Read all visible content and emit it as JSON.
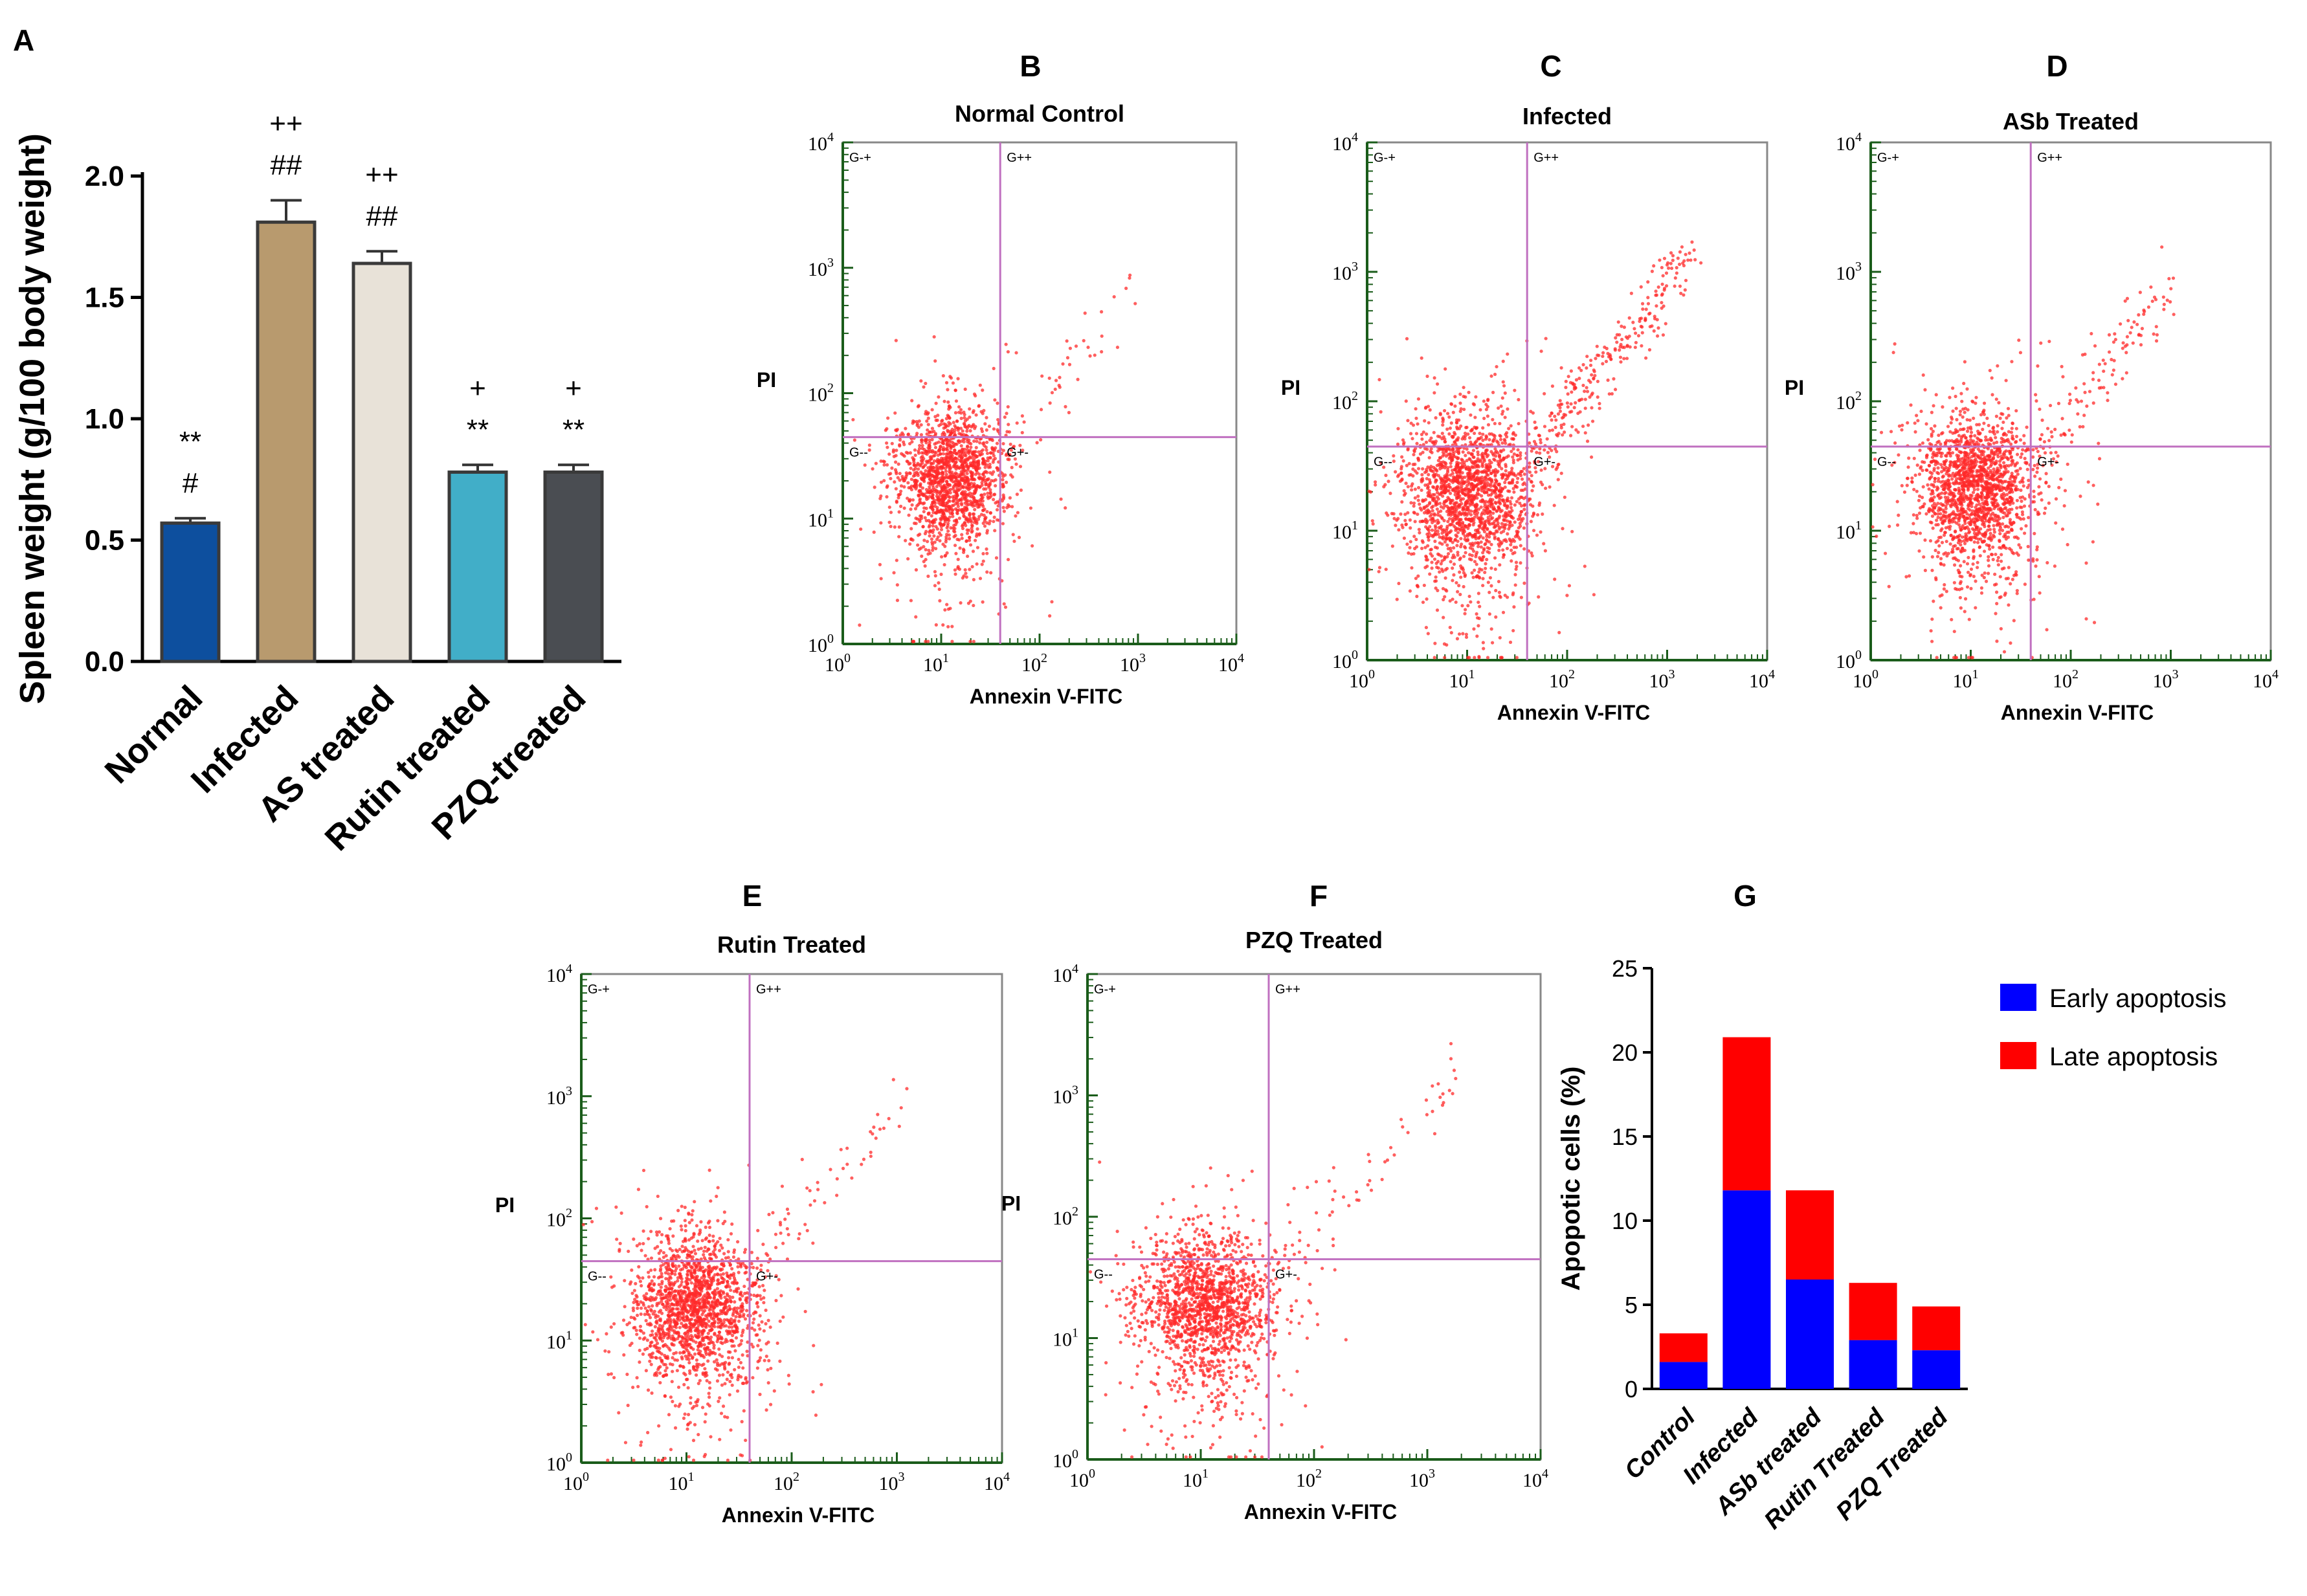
{
  "chart_data": [
    {
      "panel": "A",
      "type": "bar",
      "title": "",
      "xlabel": "",
      "ylabel": "Spleen weight (g/100 body weight)",
      "ylim": [
        0,
        2.0
      ],
      "yticks": [
        "0.0",
        "0.5",
        "1.0",
        "1.5",
        "2.0"
      ],
      "categories": [
        "Normal",
        "Infected",
        "AS treated",
        "Rutin treated",
        "PZQ-treated"
      ],
      "values": [
        0.57,
        1.81,
        1.64,
        0.78,
        0.78
      ],
      "errors": [
        0.02,
        0.09,
        0.05,
        0.03,
        0.03
      ],
      "colors": [
        "#0d4f9e",
        "#b89a6e",
        "#e8e2d8",
        "#41aec8",
        "#4a4d52"
      ],
      "annotations": [
        [
          "**",
          "#"
        ],
        [
          "++",
          "##"
        ],
        [
          "++",
          "##"
        ],
        [
          "+",
          "**"
        ],
        [
          "+",
          "**"
        ]
      ]
    },
    {
      "panel": "B",
      "type": "scatter",
      "title": "Normal Control",
      "xlabel": "Annexin V-FITC",
      "ylabel": "PI",
      "ticks": [
        "0",
        "1",
        "2",
        "3",
        "4"
      ],
      "quadrants": [
        "G-+",
        "G++",
        "G--",
        "G+-"
      ],
      "gate": [
        1.6,
        1.65
      ],
      "cluster": {
        "x": 1.1,
        "y": 1.35,
        "spread": 0.28,
        "n": 1600
      },
      "diagonal": {
        "n": 40,
        "from": 1.7,
        "to": 3.0
      },
      "outliers": 60
    },
    {
      "panel": "C",
      "type": "scatter",
      "title": "Infected",
      "xlabel": "Annexin V-FITC",
      "ylabel": "PI",
      "ticks": [
        "0",
        "1",
        "2",
        "3",
        "4"
      ],
      "quadrants": [
        "G-+",
        "G++",
        "G--",
        "G+-"
      ],
      "gate": [
        1.6,
        1.65
      ],
      "cluster": {
        "x": 1.0,
        "y": 1.3,
        "spread": 0.32,
        "n": 1800
      },
      "diagonal": {
        "n": 260,
        "from": 1.6,
        "to": 3.2
      },
      "outliers": 60
    },
    {
      "panel": "D",
      "type": "scatter",
      "title": "ASb Treated",
      "xlabel": "Annexin V-FITC",
      "ylabel": "PI",
      "ticks": [
        "0",
        "1",
        "2",
        "3",
        "4"
      ],
      "quadrants": [
        "G-+",
        "G++",
        "G--",
        "G+-"
      ],
      "gate": [
        1.6,
        1.65
      ],
      "cluster": {
        "x": 1.05,
        "y": 1.35,
        "spread": 0.3,
        "n": 1700
      },
      "diagonal": {
        "n": 120,
        "from": 1.6,
        "to": 3.0
      },
      "outliers": 60
    },
    {
      "panel": "E",
      "type": "scatter",
      "title": "Rutin Treated",
      "xlabel": "Annexin V-FITC",
      "ylabel": "PI",
      "ticks": [
        "0",
        "1",
        "2",
        "3",
        "4"
      ],
      "quadrants": [
        "G-+",
        "G++",
        "G--",
        "G+-"
      ],
      "gate": [
        1.6,
        1.65
      ],
      "cluster": {
        "x": 1.1,
        "y": 1.3,
        "spread": 0.3,
        "n": 1700
      },
      "diagonal": {
        "n": 50,
        "from": 1.7,
        "to": 3.0
      },
      "outliers": 60
    },
    {
      "panel": "F",
      "type": "scatter",
      "title": "PZQ Treated",
      "xlabel": "Annexin V-FITC",
      "ylabel": "PI",
      "ticks": [
        "0",
        "1",
        "2",
        "3",
        "4"
      ],
      "quadrants": [
        "G-+",
        "G++",
        "G--",
        "G+-"
      ],
      "gate": [
        1.6,
        1.65
      ],
      "cluster": {
        "x": 1.05,
        "y": 1.3,
        "spread": 0.3,
        "n": 1600
      },
      "diagonal": {
        "n": 50,
        "from": 1.7,
        "to": 3.3
      },
      "outliers": 60
    },
    {
      "panel": "G",
      "type": "bar",
      "stacked": true,
      "title": "",
      "xlabel": "",
      "ylabel": "Apopotic cells (%)",
      "ylim": [
        0,
        25
      ],
      "yticks": [
        "0",
        "5",
        "10",
        "15",
        "20",
        "25"
      ],
      "categories": [
        "Control",
        "Infected",
        "ASb treated",
        "Rutin Treated",
        "PZQ Treated"
      ],
      "series": [
        {
          "name": "Early apoptosis",
          "color": "#0000ff",
          "values": [
            1.6,
            11.8,
            6.5,
            2.9,
            2.3
          ]
        },
        {
          "name": "Late apoptosis",
          "color": "#ff0000",
          "values": [
            1.7,
            9.1,
            5.3,
            3.4,
            2.6
          ]
        }
      ],
      "legend": "top-right"
    }
  ]
}
